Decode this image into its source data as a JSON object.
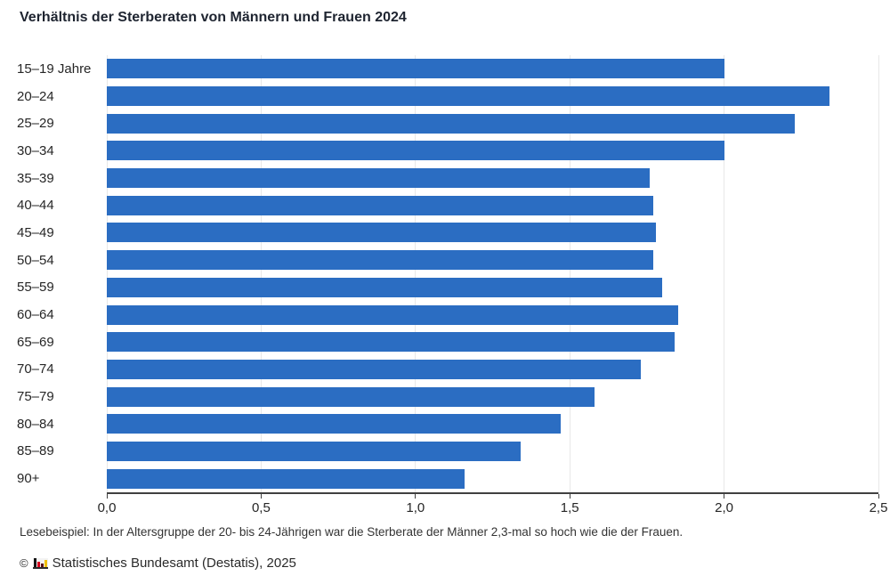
{
  "title": "Verhältnis der Sterberaten von Männern und Frauen 2024",
  "chart_data": {
    "type": "bar",
    "orientation": "horizontal",
    "title": "Verhältnis der Sterberaten von Männern und Frauen 2024",
    "categories": [
      "15–19 Jahre",
      "20–24",
      "25–29",
      "30–34",
      "35–39",
      "40–44",
      "45–49",
      "50–54",
      "55–59",
      "60–64",
      "65–69",
      "70–74",
      "75–79",
      "80–84",
      "85–89",
      "90+"
    ],
    "values": [
      2.0,
      2.34,
      2.23,
      2.0,
      1.76,
      1.77,
      1.78,
      1.77,
      1.8,
      1.85,
      1.84,
      1.73,
      1.58,
      1.47,
      1.34,
      1.16
    ],
    "xlabel": "",
    "ylabel": "",
    "xlim": [
      0,
      2.5
    ],
    "x_tick_labels": [
      "0,0",
      "0,5",
      "1,0",
      "1,5",
      "2,0",
      "2,5"
    ],
    "x_tick_values": [
      0,
      0.5,
      1.0,
      1.5,
      2.0,
      2.5
    ],
    "grid": "vertical-only",
    "legend": "none",
    "bar_color": "#2b6dc2"
  },
  "footnote": "Lesebeispiel: In der Altersgruppe der 20- bis 24-Jährigen war die Sterberate der Männer 2,3-mal so hoch wie die der Frauen.",
  "source": {
    "copyright": "©",
    "label": "Statistisches Bundesamt (Destatis), 2025"
  },
  "colors": {
    "bar": "#2b6dc2",
    "grid": "#e8e8e8",
    "axis": "#404040",
    "text": "#262626",
    "title": "#1e2430"
  }
}
